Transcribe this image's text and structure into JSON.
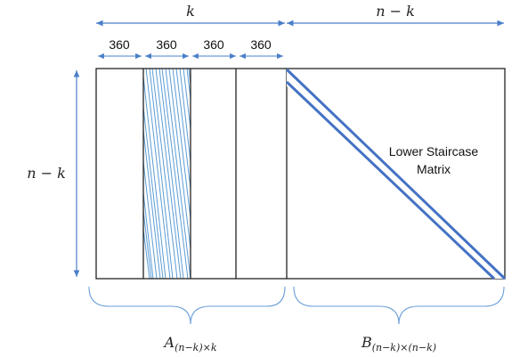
{
  "dimensions": {
    "top_left_label": "k",
    "top_right_label": "n − k",
    "left_label": "n − k"
  },
  "column_blocks": [
    {
      "width_label": "360"
    },
    {
      "width_label": "360"
    },
    {
      "width_label": "360"
    },
    {
      "width_label": "360"
    }
  ],
  "staircase_annotation": {
    "line1": "Lower Staircase",
    "line2": "Matrix"
  },
  "submatrix_labels": {
    "a_base": "A",
    "a_subscript": "(n−k)×k",
    "b_base": "B",
    "b_subscript": "(n−k)×(n−k)"
  },
  "colors": {
    "arrow": "#4a7fc9",
    "matrix_outline": "#222222",
    "hatch_lines": "#5b9bd5",
    "staircase_band": "#4472c4",
    "brace": "#6a9fd8"
  }
}
